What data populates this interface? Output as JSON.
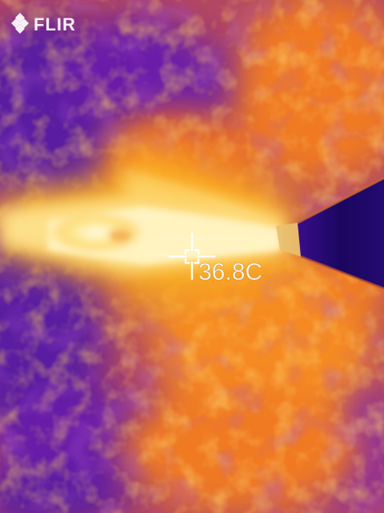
{
  "camera": {
    "brand": "FLIR",
    "logo_icon": "flir-diamond-icon"
  },
  "measurement": {
    "spot_temperature": "36.8C",
    "spot_icon": "crosshair-icon"
  },
  "palette": {
    "coolest": "#2a0a8a",
    "cool": "#6a1fa8",
    "mid": "#d0407a",
    "warm": "#f07a20",
    "hot": "#fbb21e",
    "hottest": "#fff8cc",
    "object_dark": "#1a0660"
  }
}
